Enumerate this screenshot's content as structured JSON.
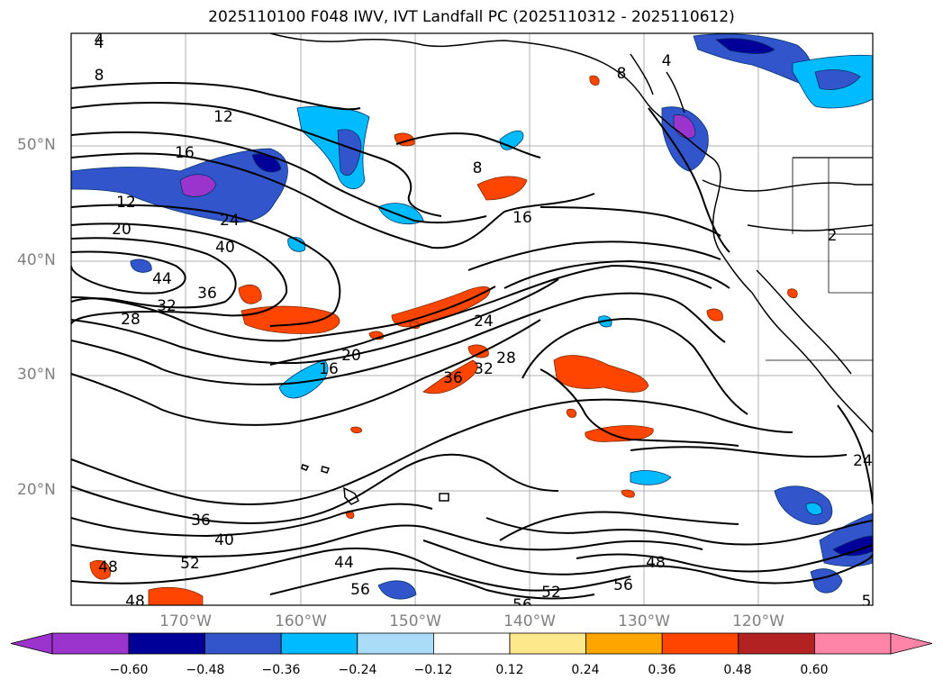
{
  "title": "2025110100 F048 IWV, IVT Landfall PC (2025110312 - 2025110612)",
  "lat_labels": [
    "50°N",
    "40°N",
    "30°N",
    "20°N"
  ],
  "lon_labels": [
    "170°W",
    "160°W",
    "150°W",
    "140°W",
    "130°W",
    "120°W"
  ],
  "contour_labels": [
    "4",
    "8",
    "12",
    "16",
    "12",
    "20",
    "24",
    "40",
    "44",
    "32",
    "36",
    "28",
    "8",
    "16",
    "24",
    "20",
    "16",
    "36",
    "32",
    "28",
    "36",
    "40",
    "52",
    "48",
    "48",
    "44",
    "56",
    "56",
    "52",
    "56",
    "48",
    "2",
    "24",
    "5",
    "4",
    "4",
    "8"
  ],
  "colorbar": {
    "tick_labels": [
      "−0.60",
      "−0.48",
      "−0.36",
      "−0.24",
      "−0.12",
      "0.12",
      "0.24",
      "0.36",
      "0.48",
      "0.60"
    ],
    "colors": [
      "#9a34cc",
      "#000099",
      "#3355cc",
      "#00bbff",
      "#aadcf8",
      "#ffffff",
      "#fde98c",
      "#ffa500",
      "#ff4500",
      "#b22222",
      "#ff85a8"
    ]
  },
  "colors": {
    "contour": "#000000",
    "coast": "#000000",
    "grid": "#b0b0b0",
    "axis_tick_text": "#808080"
  }
}
